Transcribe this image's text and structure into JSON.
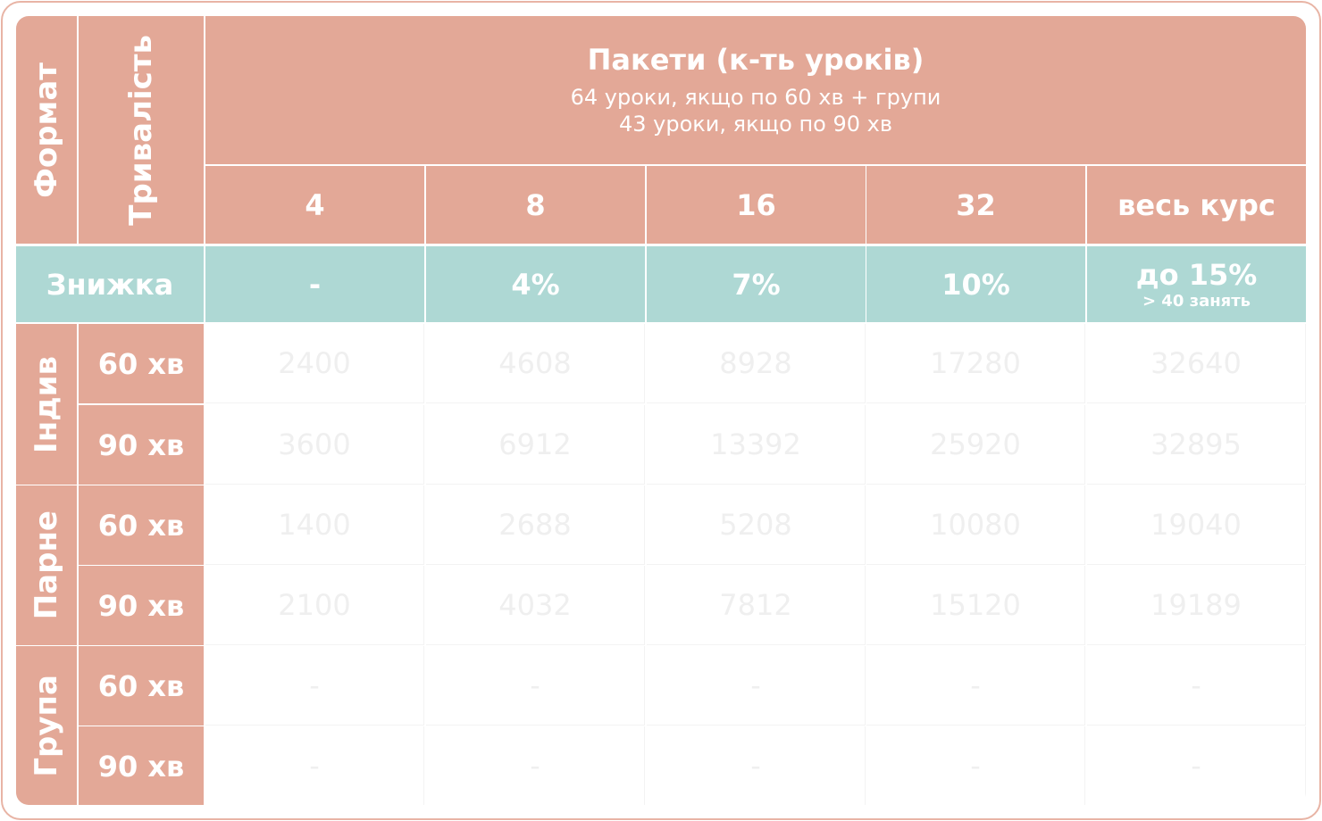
{
  "header": {
    "format": "Формат",
    "duration": "Тривалість",
    "packages_title": "Пакети (к-ть уроків)",
    "packages_note": [
      "64 уроки, якщо по 60 хв + групи",
      "43 уроки, якщо по 90 хв"
    ],
    "packages": [
      "4",
      "8",
      "16",
      "32",
      "весь курс"
    ]
  },
  "discount": {
    "label": "Знижка",
    "values": [
      "-",
      "4%",
      "7%",
      "10%",
      "до 15%"
    ],
    "note": "> 40 занять"
  },
  "groups": [
    {
      "format": "Індив",
      "rows": [
        {
          "duration": "60 хв",
          "prices": [
            2400,
            4608,
            8928,
            17280,
            32640
          ]
        },
        {
          "duration": "90 хв",
          "prices": [
            3600,
            6912,
            13392,
            25920,
            32895
          ]
        }
      ]
    },
    {
      "format": "Парне",
      "rows": [
        {
          "duration": "60 хв",
          "prices": [
            1400,
            2688,
            5208,
            10080,
            19040
          ]
        },
        {
          "duration": "90 хв",
          "prices": [
            2100,
            4032,
            7812,
            15120,
            19189
          ]
        }
      ]
    },
    {
      "format": "Група",
      "rows": [
        {
          "duration": "60 хв",
          "prices": [
            "-",
            "-",
            "-",
            "-",
            "-"
          ]
        },
        {
          "duration": "90 хв",
          "prices": [
            "-",
            "-",
            "-",
            "-",
            "-"
          ]
        }
      ]
    }
  ]
}
